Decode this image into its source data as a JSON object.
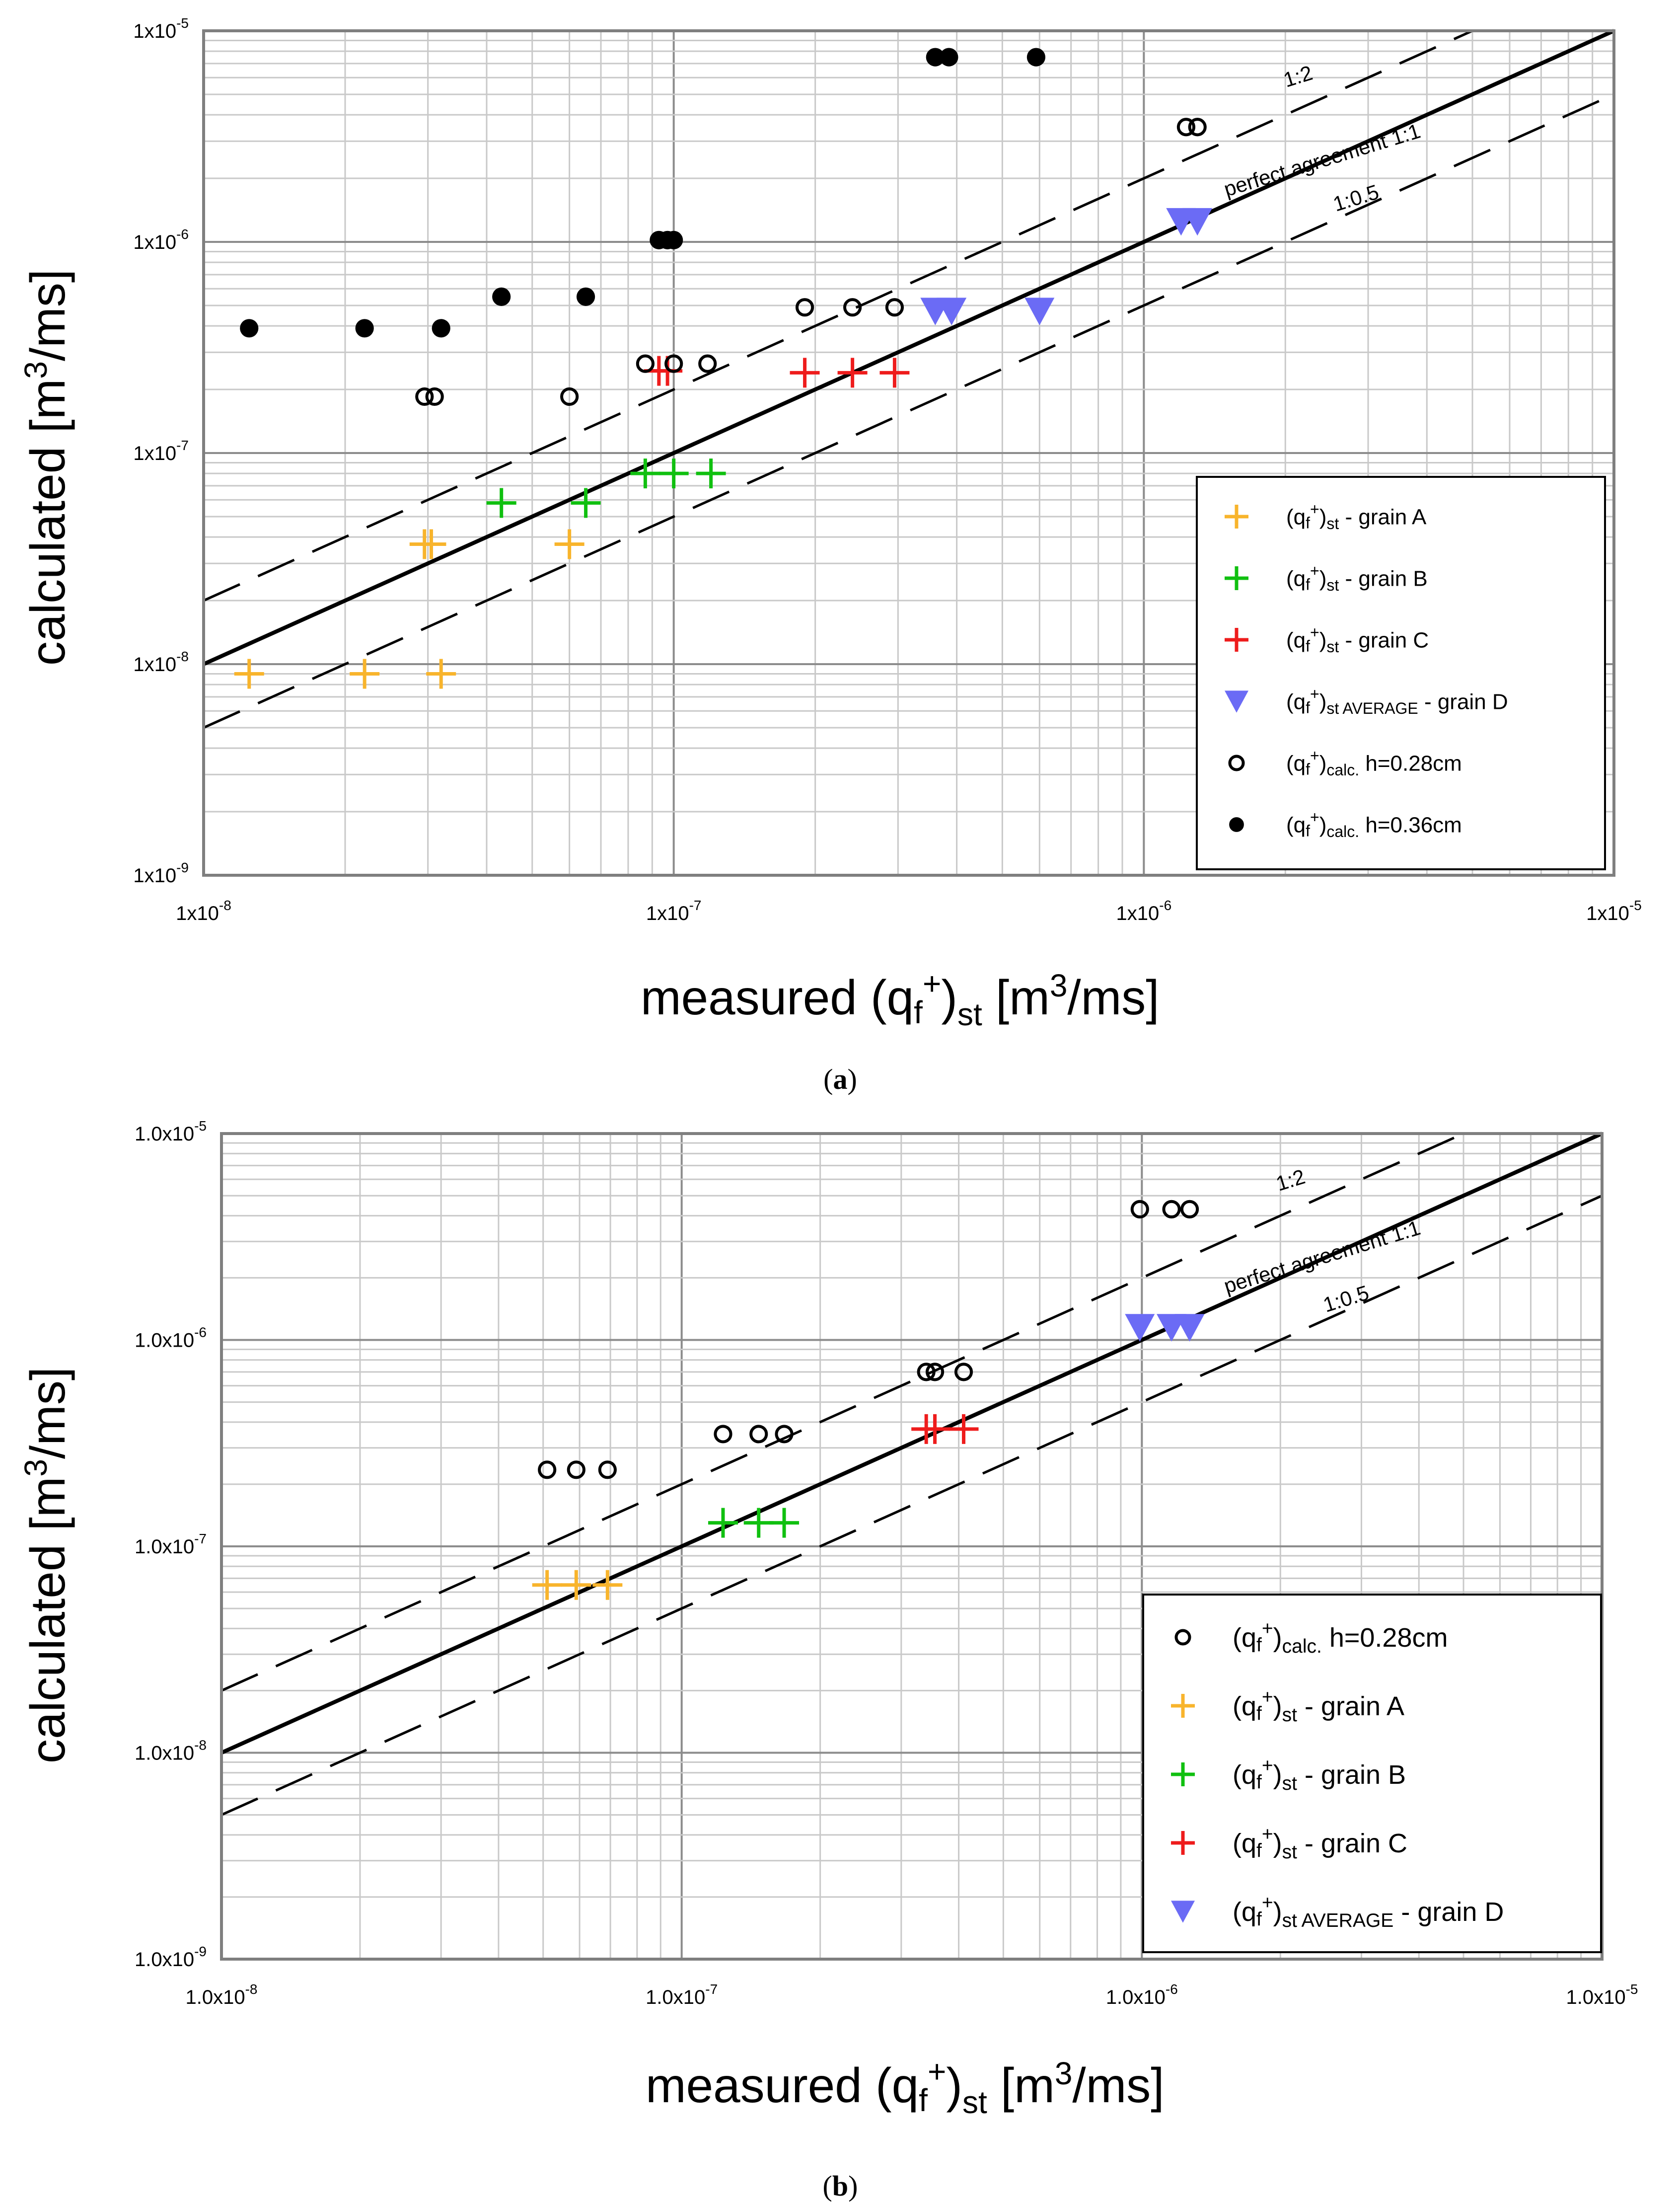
{
  "chart_data": [
    {
      "panel": "a",
      "caption": "(a)",
      "type": "scatter",
      "scale": "log-log",
      "xlim": [
        1e-08,
        1e-05
      ],
      "ylim": [
        1e-09,
        1e-05
      ],
      "x_tick_labels": [
        "1x10-8",
        "1x10-7",
        "1x10-6",
        "1x10-5"
      ],
      "y_tick_labels": [
        "1x10-9",
        "1x10-8",
        "1x10-7",
        "1x10-6",
        "1x10-5"
      ],
      "xlabel": "measured (qf+)st [m3/ms]",
      "ylabel": "calculated [m3/ms]",
      "reference_lines": [
        {
          "label": "perfect agreement 1:1",
          "ratio": 1,
          "style": "solid"
        },
        {
          "label": "1:2",
          "ratio": 2,
          "style": "dashed"
        },
        {
          "label": "1:0.5",
          "ratio": 0.5,
          "style": "dashed"
        }
      ],
      "legend_position": "bottom-right",
      "series": [
        {
          "name": "(qf+)st - grain A",
          "marker": "plus",
          "color": "#f8b42c",
          "points": [
            [
              1.25e-08,
              9e-09
            ],
            [
              2.2e-08,
              9e-09
            ],
            [
              3.2e-08,
              9e-09
            ],
            [
              2.95e-08,
              3.7e-08
            ],
            [
              3.05e-08,
              3.7e-08
            ],
            [
              6e-08,
              3.7e-08
            ]
          ]
        },
        {
          "name": "(qf+)st - grain B",
          "marker": "plus",
          "color": "#10c010",
          "points": [
            [
              4.3e-08,
              5.8e-08
            ],
            [
              6.5e-08,
              5.8e-08
            ],
            [
              8.7e-08,
              8e-08
            ],
            [
              1e-07,
              8e-08
            ],
            [
              1.2e-07,
              8e-08
            ]
          ]
        },
        {
          "name": "(qf+)st - grain C",
          "marker": "plus",
          "color": "#ee1c1c",
          "points": [
            [
              9.3e-08,
              2.45e-07
            ],
            [
              9.7e-08,
              2.45e-07
            ],
            [
              1.9e-07,
              2.4e-07
            ],
            [
              2.4e-07,
              2.4e-07
            ],
            [
              2.95e-07,
              2.4e-07
            ]
          ]
        },
        {
          "name": "(qf+)st AVERAGE - grain D",
          "marker": "triangle-down",
          "color": "#6b6bf5",
          "points": [
            [
              3.6e-07,
              4.7e-07
            ],
            [
              3.9e-07,
              4.7e-07
            ],
            [
              6e-07,
              4.7e-07
            ],
            [
              1.2e-06,
              1.25e-06
            ],
            [
              1.3e-06,
              1.25e-06
            ]
          ]
        },
        {
          "name": "(qf+)calc. h=0.28cm",
          "marker": "open-circle",
          "color": "#000000",
          "points": [
            [
              2.95e-08,
              1.85e-07
            ],
            [
              3.1e-08,
              1.85e-07
            ],
            [
              6e-08,
              1.85e-07
            ],
            [
              8.7e-08,
              2.65e-07
            ],
            [
              1e-07,
              2.65e-07
            ],
            [
              1.18e-07,
              2.65e-07
            ],
            [
              1.9e-07,
              4.9e-07
            ],
            [
              2.4e-07,
              4.9e-07
            ],
            [
              2.95e-07,
              4.9e-07
            ],
            [
              1.23e-06,
              3.5e-06
            ],
            [
              1.3e-06,
              3.5e-06
            ]
          ]
        },
        {
          "name": "(qf+)calc. h=0.36cm",
          "marker": "filled-circle",
          "color": "#000000",
          "points": [
            [
              1.25e-08,
              3.9e-07
            ],
            [
              2.2e-08,
              3.9e-07
            ],
            [
              3.2e-08,
              3.9e-07
            ],
            [
              4.3e-08,
              5.5e-07
            ],
            [
              6.5e-08,
              5.5e-07
            ],
            [
              9.3e-08,
              1.02e-06
            ],
            [
              9.7e-08,
              1.02e-06
            ],
            [
              1e-07,
              1.02e-06
            ],
            [
              3.6e-07,
              7.5e-06
            ],
            [
              3.85e-07,
              7.5e-06
            ],
            [
              5.9e-07,
              7.5e-06
            ]
          ]
        }
      ]
    },
    {
      "panel": "b",
      "caption": "(b)",
      "type": "scatter",
      "scale": "log-log",
      "xlim": [
        1e-08,
        1e-05
      ],
      "ylim": [
        1e-09,
        1e-05
      ],
      "x_tick_labels": [
        "1.0x10-8",
        "1.0x10-7",
        "1.0x10-6",
        "1.0x10-5"
      ],
      "y_tick_labels": [
        "1.0x10-9",
        "1.0x10-8",
        "1.0x10-7",
        "1.0x10-6",
        "1.0x10-5"
      ],
      "xlabel": "measured (qf+)st [m3/ms]",
      "ylabel": "calculated [m3/ms]",
      "reference_lines": [
        {
          "label": "perfect agreement 1:1",
          "ratio": 1,
          "style": "solid"
        },
        {
          "label": "1:2",
          "ratio": 2,
          "style": "dashed"
        },
        {
          "label": "1:0.5",
          "ratio": 0.5,
          "style": "dashed"
        }
      ],
      "legend_position": "bottom-right",
      "series": [
        {
          "name": "(qf+)calc. h=0.28cm",
          "marker": "open-circle",
          "color": "#000000",
          "points": [
            [
              5.1e-08,
              2.35e-07
            ],
            [
              5.9e-08,
              2.35e-07
            ],
            [
              6.9e-08,
              2.35e-07
            ],
            [
              1.23e-07,
              3.5e-07
            ],
            [
              1.47e-07,
              3.5e-07
            ],
            [
              1.67e-07,
              3.5e-07
            ],
            [
              3.4e-07,
              7e-07
            ],
            [
              3.55e-07,
              7e-07
            ],
            [
              4.1e-07,
              7e-07
            ],
            [
              9.9e-07,
              4.3e-06
            ],
            [
              1.16e-06,
              4.3e-06
            ],
            [
              1.27e-06,
              4.3e-06
            ]
          ]
        },
        {
          "name": "(qf+)st - grain A",
          "marker": "plus",
          "color": "#f8b42c",
          "points": [
            [
              5.1e-08,
              6.5e-08
            ],
            [
              5.9e-08,
              6.5e-08
            ],
            [
              6.9e-08,
              6.5e-08
            ]
          ]
        },
        {
          "name": "(qf+)st - grain B",
          "marker": "plus",
          "color": "#10c010",
          "points": [
            [
              1.23e-07,
              1.3e-07
            ],
            [
              1.47e-07,
              1.3e-07
            ],
            [
              1.67e-07,
              1.3e-07
            ]
          ]
        },
        {
          "name": "(qf+)st - grain C",
          "marker": "plus",
          "color": "#ee1c1c",
          "points": [
            [
              3.4e-07,
              3.7e-07
            ],
            [
              3.55e-07,
              3.7e-07
            ],
            [
              4.1e-07,
              3.7e-07
            ]
          ]
        },
        {
          "name": "(qf+)st AVERAGE - grain D",
          "marker": "triangle-down",
          "color": "#6b6bf5",
          "points": [
            [
              9.9e-07,
              1.15e-06
            ],
            [
              1.16e-06,
              1.15e-06
            ],
            [
              1.27e-06,
              1.15e-06
            ]
          ]
        }
      ]
    }
  ]
}
